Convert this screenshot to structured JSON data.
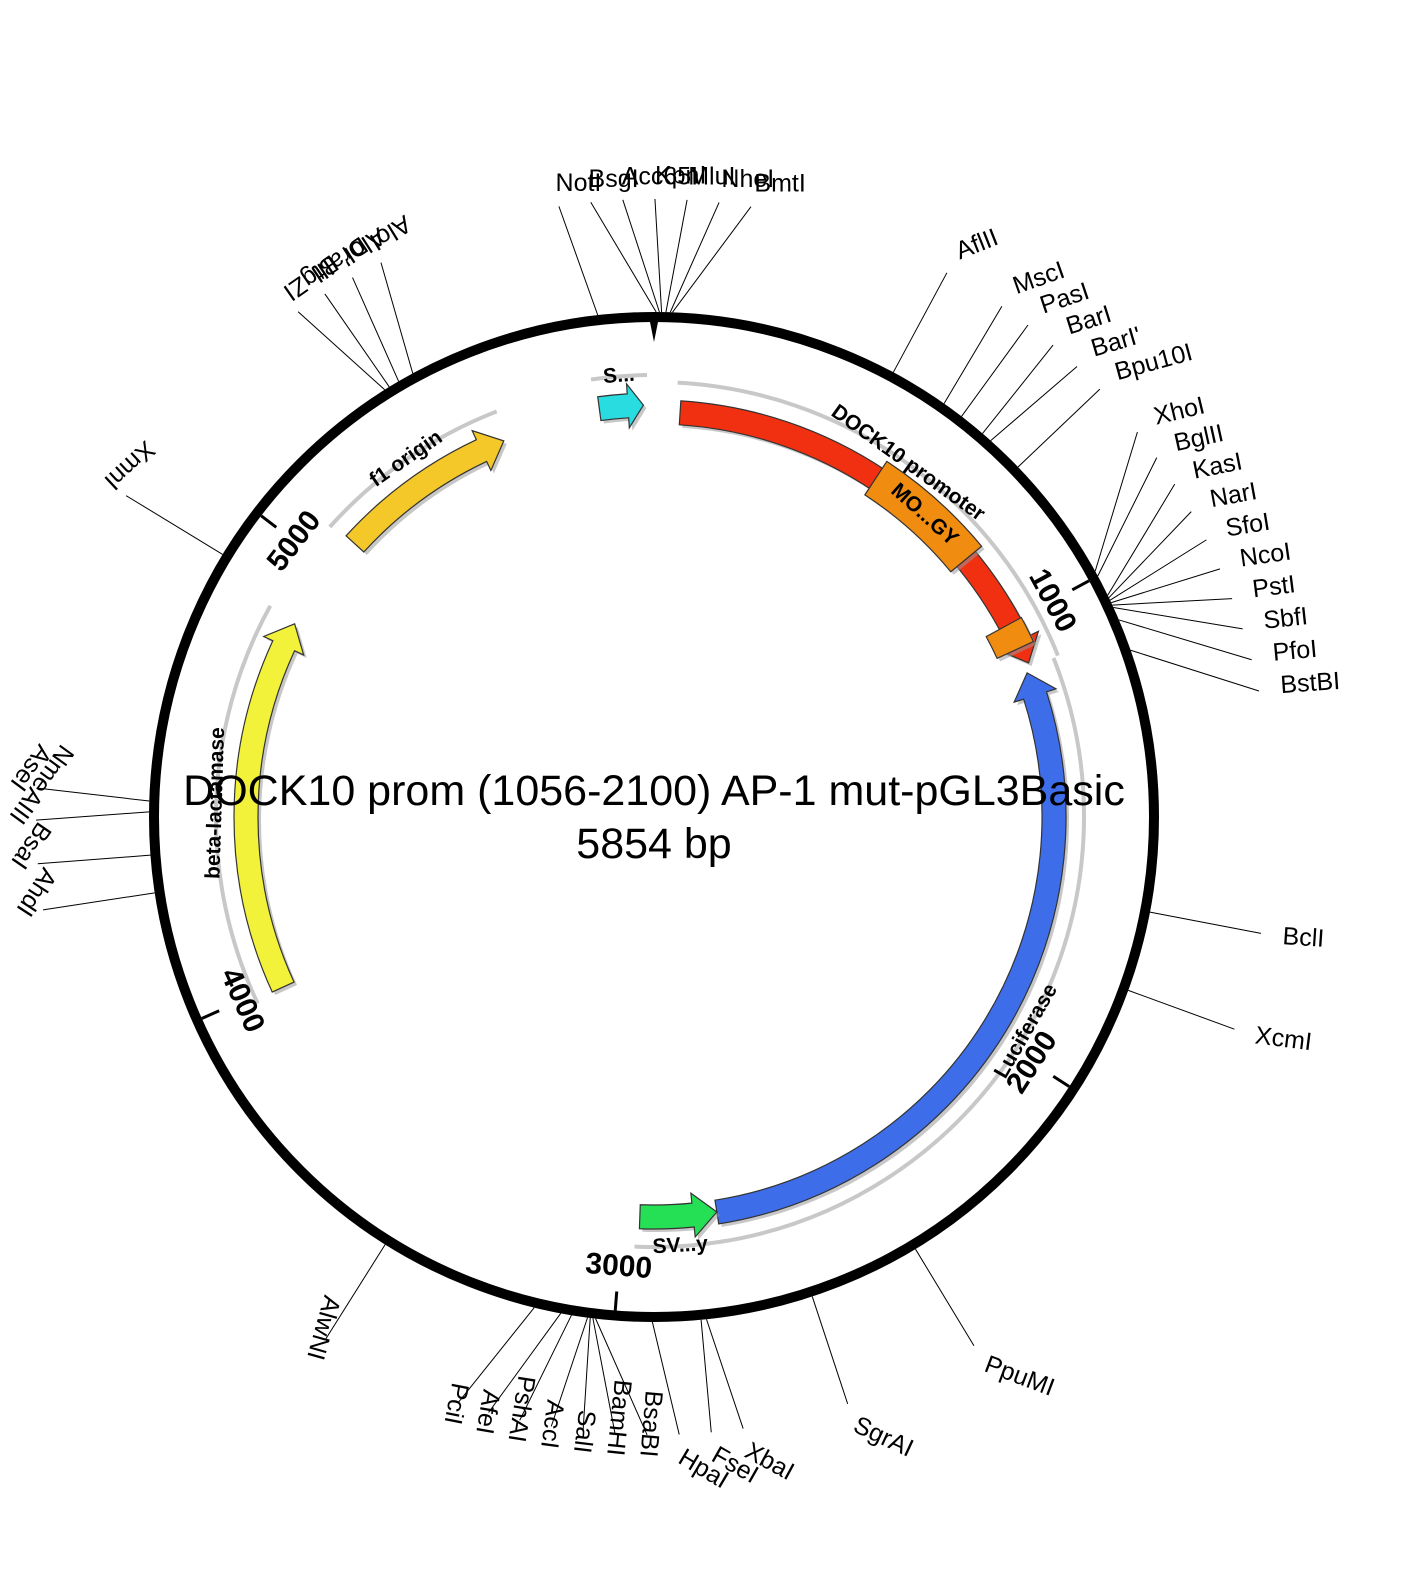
{
  "title": "DOCK10 prom (1056-2100) AP-1 mut-pGL3Basic",
  "size_label": "5854 bp",
  "total_bp": 5854,
  "features": [
    {
      "name": "DOCK10 promoter",
      "start": 60,
      "end": 1100,
      "color": "#f03010",
      "direction": 1
    },
    {
      "name": "Luciferase",
      "start": 1120,
      "end": 2780,
      "color": "#3d6de8",
      "direction": -1
    },
    {
      "name": "SV...y",
      "start": 2780,
      "end": 2960,
      "color": "#25e055",
      "direction": -1
    },
    {
      "name": "beta-lactamase",
      "start": 3990,
      "end": 4850,
      "color": "#f2f23a",
      "direction": 1
    },
    {
      "name": "f1 origin",
      "start": 5080,
      "end": 5500,
      "color": "#f5c82a",
      "direction": 1
    },
    {
      "name": "S...",
      "start": 5730,
      "end": 5830,
      "color": "#28dce0",
      "direction": 1
    },
    {
      "name": "MO...GY",
      "start": 540,
      "end": 820,
      "color": "#f08c10",
      "direction": 0
    },
    {
      "name": "",
      "start": 1000,
      "end": 1060,
      "color": "#f08c10",
      "direction": 0
    }
  ],
  "ticks": [
    {
      "label": "1000",
      "position": 1000
    },
    {
      "label": "2000",
      "position": 2000
    },
    {
      "label": "3000",
      "position": 3000
    },
    {
      "label": "4000",
      "position": 4000
    },
    {
      "label": "5000",
      "position": 5000
    }
  ],
  "sites": [
    {
      "name": "Acc65I",
      "position": 10
    },
    {
      "name": "KpnI",
      "position": 14
    },
    {
      "name": "MluI",
      "position": 22
    },
    {
      "name": "NheI",
      "position": 30
    },
    {
      "name": "BmtI",
      "position": 34
    },
    {
      "name": "BsgI",
      "position": 4
    },
    {
      "name": "NotI",
      "position": 5750
    },
    {
      "name": "BtgZI",
      "position": 5330
    },
    {
      "name": "DraIII",
      "position": 5340
    },
    {
      "name": "AloI'",
      "position": 5360
    },
    {
      "name": "AloI",
      "position": 5390
    },
    {
      "name": "XmnI",
      "position": 4900
    },
    {
      "name": "AseI",
      "position": 4420
    },
    {
      "name": "NmeAIII",
      "position": 4400
    },
    {
      "name": "BsaI",
      "position": 4320
    },
    {
      "name": "AhdI",
      "position": 4250
    },
    {
      "name": "AlwNI",
      "position": 3450
    },
    {
      "name": "PciI",
      "position": 3150
    },
    {
      "name": "AfeI",
      "position": 3100
    },
    {
      "name": "PshAI",
      "position": 3080
    },
    {
      "name": "AccI",
      "position": 3050
    },
    {
      "name": "SalI",
      "position": 3045
    },
    {
      "name": "BamHI",
      "position": 3040
    },
    {
      "name": "BsaBI",
      "position": 3035
    },
    {
      "name": "HpaI",
      "position": 2930
    },
    {
      "name": "FseI",
      "position": 2840
    },
    {
      "name": "XbaI",
      "position": 2830
    },
    {
      "name": "SgrAI",
      "position": 2630
    },
    {
      "name": "PpuMI",
      "position": 2420
    },
    {
      "name": "XcmI",
      "position": 1790
    },
    {
      "name": "BclI",
      "position": 1640
    },
    {
      "name": "BstBI",
      "position": 1150
    },
    {
      "name": "PfoI",
      "position": 1090
    },
    {
      "name": "SbfI",
      "position": 1065
    },
    {
      "name": "PstI",
      "position": 1060
    },
    {
      "name": "NcoI",
      "position": 1055
    },
    {
      "name": "SfoI",
      "position": 1050
    },
    {
      "name": "NarI",
      "position": 1045
    },
    {
      "name": "KasI",
      "position": 1040
    },
    {
      "name": "BglII",
      "position": 1000
    },
    {
      "name": "XhoI",
      "position": 990
    },
    {
      "name": "Bpu10I",
      "position": 750
    },
    {
      "name": "BarI'",
      "position": 680
    },
    {
      "name": "BarI",
      "position": 660
    },
    {
      "name": "PasI",
      "position": 610
    },
    {
      "name": "MscI",
      "position": 570
    },
    {
      "name": "AflII",
      "position": 460
    }
  ]
}
